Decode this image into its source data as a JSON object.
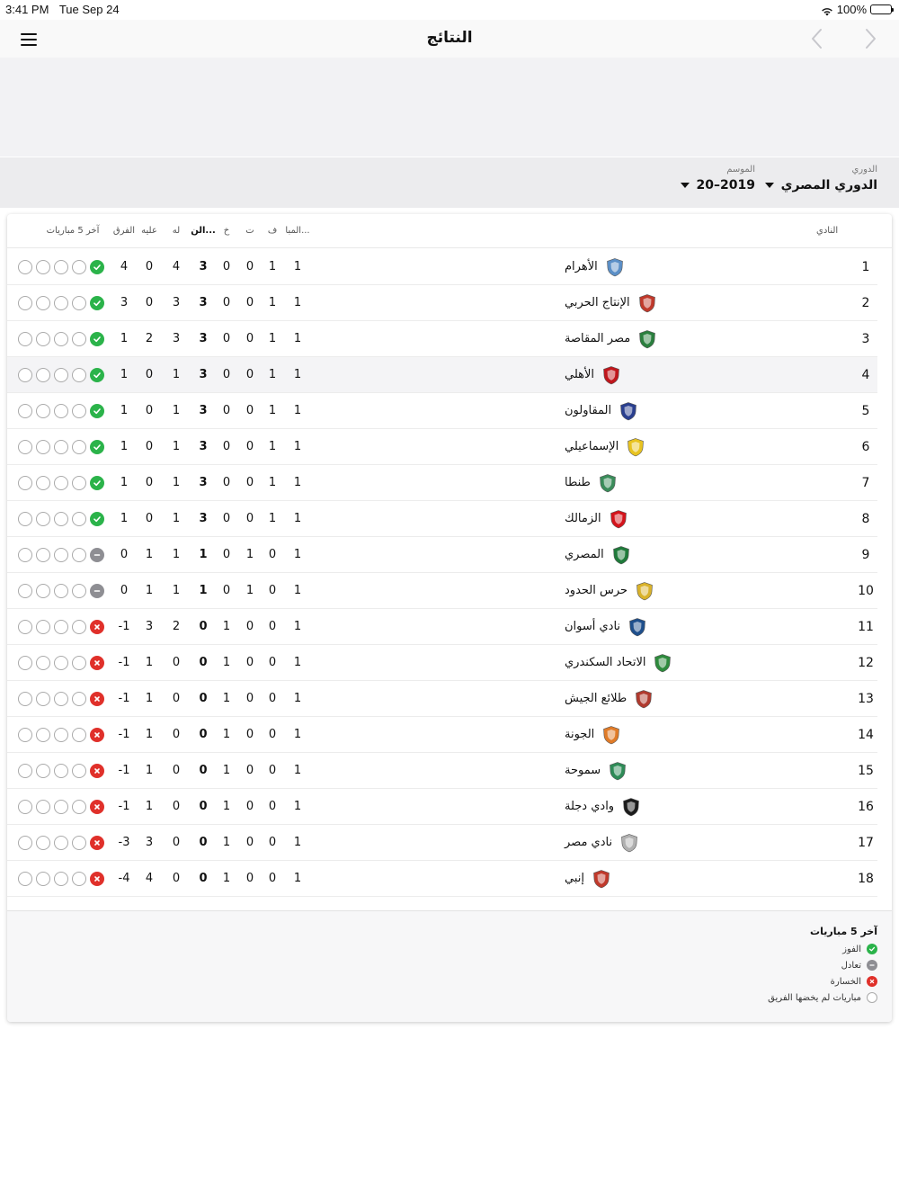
{
  "status": {
    "time": "3:41 PM",
    "date": "Tue Sep 24",
    "battery": "100%"
  },
  "nav": {
    "title": "النتائج"
  },
  "filters": {
    "league": {
      "label": "الدوري",
      "value": "الدوري المصري"
    },
    "season": {
      "label": "الموسم",
      "value": "2019–20"
    }
  },
  "table": {
    "headers": {
      "club": "النادي",
      "matches": "المبا...",
      "won": "ف",
      "drawn": "ت",
      "lost": "خ",
      "points": "الن...",
      "for": "له",
      "against": "عليه",
      "diff": "الفرق",
      "form": "آخر 5 مباريات"
    },
    "rows": [
      {
        "pos": "1",
        "team": "الأهرام",
        "mp": "1",
        "w": "1",
        "d": "0",
        "l": "0",
        "pts": "3",
        "gf": "4",
        "ga": "0",
        "gd": "4",
        "form": [
          "w",
          "n",
          "n",
          "n",
          "n"
        ],
        "logo": "pyramids-logo",
        "color": "#5b8fc7"
      },
      {
        "pos": "2",
        "team": "الإنتاج الحربي",
        "mp": "1",
        "w": "1",
        "d": "0",
        "l": "0",
        "pts": "3",
        "gf": "3",
        "ga": "0",
        "gd": "3",
        "form": [
          "w",
          "n",
          "n",
          "n",
          "n"
        ],
        "logo": "military-production-logo",
        "color": "#c0392b"
      },
      {
        "pos": "3",
        "team": "مصر المقاصة",
        "mp": "1",
        "w": "1",
        "d": "0",
        "l": "0",
        "pts": "3",
        "gf": "3",
        "ga": "2",
        "gd": "1",
        "form": [
          "w",
          "n",
          "n",
          "n",
          "n"
        ],
        "logo": "misr-makkasa-logo",
        "color": "#2a7f3e"
      },
      {
        "pos": "4",
        "team": "الأهلي",
        "mp": "1",
        "w": "1",
        "d": "0",
        "l": "0",
        "pts": "3",
        "gf": "1",
        "ga": "0",
        "gd": "1",
        "form": [
          "w",
          "n",
          "n",
          "n",
          "n"
        ],
        "logo": "al-ahly-logo",
        "color": "#c0161c"
      },
      {
        "pos": "5",
        "team": "المقاولون",
        "mp": "1",
        "w": "1",
        "d": "0",
        "l": "0",
        "pts": "3",
        "gf": "1",
        "ga": "0",
        "gd": "1",
        "form": [
          "w",
          "n",
          "n",
          "n",
          "n"
        ],
        "logo": "arab-contractors-logo",
        "color": "#2a3f8f"
      },
      {
        "pos": "6",
        "team": "الإسماعيلي",
        "mp": "1",
        "w": "1",
        "d": "0",
        "l": "0",
        "pts": "3",
        "gf": "1",
        "ga": "0",
        "gd": "1",
        "form": [
          "w",
          "n",
          "n",
          "n",
          "n"
        ],
        "logo": "ismaily-logo",
        "color": "#e8c320"
      },
      {
        "pos": "7",
        "team": "طنطا",
        "mp": "1",
        "w": "1",
        "d": "0",
        "l": "0",
        "pts": "3",
        "gf": "1",
        "ga": "0",
        "gd": "1",
        "form": [
          "w",
          "n",
          "n",
          "n",
          "n"
        ],
        "logo": "tanta-logo",
        "color": "#3a8c5a"
      },
      {
        "pos": "8",
        "team": "الزمالك",
        "mp": "1",
        "w": "1",
        "d": "0",
        "l": "0",
        "pts": "3",
        "gf": "1",
        "ga": "0",
        "gd": "1",
        "form": [
          "w",
          "n",
          "n",
          "n",
          "n"
        ],
        "logo": "zamalek-logo",
        "color": "#d4141c"
      },
      {
        "pos": "9",
        "team": "المصري",
        "mp": "1",
        "w": "0",
        "d": "1",
        "l": "0",
        "pts": "1",
        "gf": "1",
        "ga": "1",
        "gd": "0",
        "form": [
          "d",
          "n",
          "n",
          "n",
          "n"
        ],
        "logo": "al-masry-logo",
        "color": "#1f7a3a"
      },
      {
        "pos": "10",
        "team": "حرس الحدود",
        "mp": "1",
        "w": "0",
        "d": "1",
        "l": "0",
        "pts": "1",
        "gf": "1",
        "ga": "1",
        "gd": "0",
        "form": [
          "d",
          "n",
          "n",
          "n",
          "n"
        ],
        "logo": "haras-el-hodoud-logo",
        "color": "#d9b22b"
      },
      {
        "pos": "11",
        "team": "نادي أسوان",
        "mp": "1",
        "w": "0",
        "d": "0",
        "l": "1",
        "pts": "0",
        "gf": "2",
        "ga": "3",
        "gd": "-1",
        "form": [
          "l",
          "n",
          "n",
          "n",
          "n"
        ],
        "logo": "aswan-logo",
        "color": "#1e4f8c"
      },
      {
        "pos": "12",
        "team": "الاتحاد السكندري",
        "mp": "1",
        "w": "0",
        "d": "0",
        "l": "1",
        "pts": "0",
        "gf": "0",
        "ga": "1",
        "gd": "-1",
        "form": [
          "l",
          "n",
          "n",
          "n",
          "n"
        ],
        "logo": "al-ittihad-logo",
        "color": "#2e8b3d"
      },
      {
        "pos": "13",
        "team": "طلائع الجيش",
        "mp": "1",
        "w": "0",
        "d": "0",
        "l": "1",
        "pts": "0",
        "gf": "0",
        "ga": "1",
        "gd": "-1",
        "form": [
          "l",
          "n",
          "n",
          "n",
          "n"
        ],
        "logo": "tala-ea-el-gaish-logo",
        "color": "#b03a2e"
      },
      {
        "pos": "14",
        "team": "الجونة",
        "mp": "1",
        "w": "0",
        "d": "0",
        "l": "1",
        "pts": "0",
        "gf": "0",
        "ga": "1",
        "gd": "-1",
        "form": [
          "l",
          "n",
          "n",
          "n",
          "n"
        ],
        "logo": "el-gouna-logo",
        "color": "#e07b28"
      },
      {
        "pos": "15",
        "team": "سموحة",
        "mp": "1",
        "w": "0",
        "d": "0",
        "l": "1",
        "pts": "0",
        "gf": "0",
        "ga": "1",
        "gd": "-1",
        "form": [
          "l",
          "n",
          "n",
          "n",
          "n"
        ],
        "logo": "smouha-logo",
        "color": "#2e8b57"
      },
      {
        "pos": "16",
        "team": "وادي دجلة",
        "mp": "1",
        "w": "0",
        "d": "0",
        "l": "1",
        "pts": "0",
        "gf": "0",
        "ga": "1",
        "gd": "-1",
        "form": [
          "l",
          "n",
          "n",
          "n",
          "n"
        ],
        "logo": "wadi-degla-logo",
        "color": "#1c1c1c"
      },
      {
        "pos": "17",
        "team": "نادي مصر",
        "mp": "1",
        "w": "0",
        "d": "0",
        "l": "1",
        "pts": "0",
        "gf": "0",
        "ga": "3",
        "gd": "-3",
        "form": [
          "l",
          "n",
          "n",
          "n",
          "n"
        ],
        "logo": "misr-club-logo",
        "color": "#b0b0b0"
      },
      {
        "pos": "18",
        "team": "إنبي",
        "mp": "1",
        "w": "0",
        "d": "0",
        "l": "1",
        "pts": "0",
        "gf": "0",
        "ga": "4",
        "gd": "-4",
        "form": [
          "l",
          "n",
          "n",
          "n",
          "n"
        ],
        "logo": "enppi-logo",
        "color": "#c0392b"
      }
    ]
  },
  "legend": {
    "title": "آخر 5 مباريات",
    "items": [
      {
        "type": "w",
        "label": "الفوز"
      },
      {
        "type": "d",
        "label": "تعادل"
      },
      {
        "type": "l",
        "label": "الخسارة"
      },
      {
        "type": "n",
        "label": "مباريات لم يخضها الفريق"
      }
    ]
  },
  "colors": {
    "win": "#2bb34a",
    "draw": "#8e8e93",
    "loss": "#e0302a",
    "highlight_row": "#f4f4f6"
  },
  "highlighted_row": 3
}
